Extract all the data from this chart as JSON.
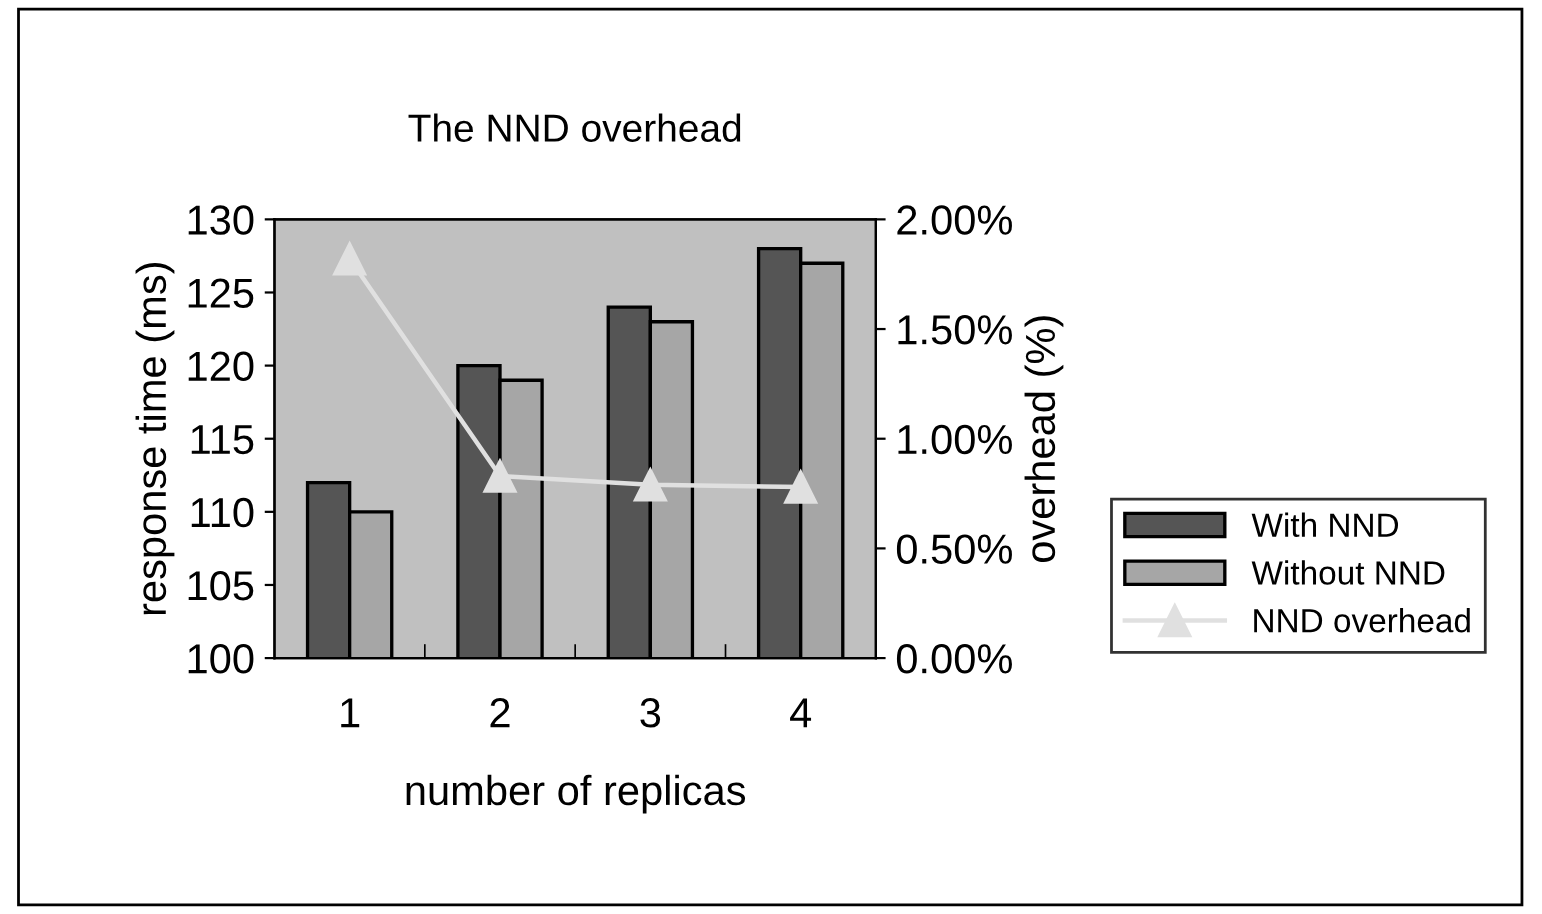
{
  "chart_data": {
    "type": "bar",
    "title": "The NND overhead",
    "xlabel": "number of replicas",
    "ylabel": "response time (ms)",
    "y2label": "overhead (%)",
    "categories": [
      "1",
      "2",
      "3",
      "4"
    ],
    "series": [
      {
        "name": "With NND",
        "color": "#555555",
        "values": [
          112,
          120,
          124,
          128
        ]
      },
      {
        "name": "Without NND",
        "color": "#a6a6a6",
        "values": [
          110,
          119,
          123,
          127
        ]
      },
      {
        "name": "NND overhead",
        "type": "line",
        "axis": "y2",
        "color": "#e0e0e0",
        "marker": "triangle",
        "values": [
          1.82,
          0.83,
          0.79,
          0.78
        ]
      }
    ],
    "ylim": [
      100,
      130
    ],
    "yticks": [
      100,
      105,
      110,
      115,
      120,
      125,
      130
    ],
    "y2lim": [
      0,
      2
    ],
    "y2ticks": [
      {
        "value": 0,
        "label": "0.00%"
      },
      {
        "value": 0.5,
        "label": "0.50%"
      },
      {
        "value": 1,
        "label": "1.00%"
      },
      {
        "value": 1.5,
        "label": "1.50%"
      },
      {
        "value": 2,
        "label": "2.00%"
      }
    ],
    "grid": false,
    "legend": "right"
  }
}
